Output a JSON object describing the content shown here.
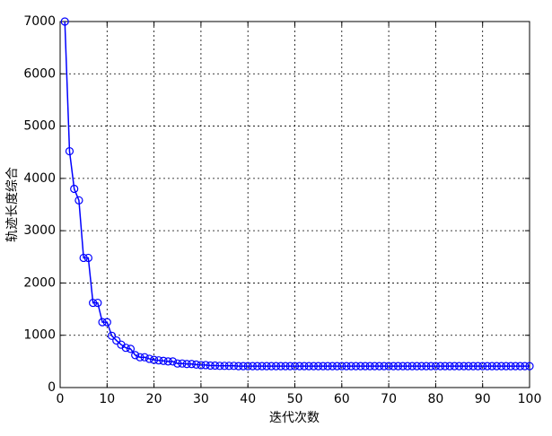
{
  "chart_data": {
    "type": "line",
    "xlabel": "迭代次数",
    "ylabel": "轨迹长度综合",
    "x": [
      1,
      2,
      3,
      4,
      5,
      6,
      7,
      8,
      9,
      10,
      11,
      12,
      13,
      14,
      15,
      16,
      17,
      18,
      19,
      20,
      21,
      22,
      23,
      24,
      25,
      26,
      27,
      28,
      29,
      30,
      31,
      32,
      33,
      34,
      35,
      36,
      37,
      38,
      39,
      40,
      41,
      42,
      43,
      44,
      45,
      46,
      47,
      48,
      49,
      50,
      51,
      52,
      53,
      54,
      55,
      56,
      57,
      58,
      59,
      60,
      61,
      62,
      63,
      64,
      65,
      66,
      67,
      68,
      69,
      70,
      71,
      72,
      73,
      74,
      75,
      76,
      77,
      78,
      79,
      80,
      81,
      82,
      83,
      84,
      85,
      86,
      87,
      88,
      89,
      90,
      91,
      92,
      93,
      94,
      95,
      96,
      97,
      98,
      99,
      100
    ],
    "series": [
      {
        "color": "#0000ff",
        "marker": "circle",
        "values": [
          7000,
          4520,
          3800,
          3580,
          2480,
          2480,
          1620,
          1620,
          1250,
          1250,
          990,
          900,
          820,
          760,
          740,
          620,
          580,
          580,
          550,
          530,
          520,
          510,
          500,
          500,
          460,
          460,
          450,
          450,
          440,
          430,
          430,
          420,
          420,
          415,
          415,
          415,
          415,
          410,
          410,
          410,
          410,
          410,
          410,
          410,
          410,
          410,
          410,
          410,
          410,
          410,
          410,
          410,
          410,
          410,
          410,
          410,
          410,
          410,
          410,
          410,
          410,
          410,
          410,
          410,
          410,
          410,
          410,
          410,
          410,
          410,
          410,
          410,
          410,
          410,
          410,
          410,
          410,
          410,
          410,
          410,
          410,
          410,
          410,
          410,
          410,
          410,
          410,
          410,
          410,
          410,
          410,
          410,
          410,
          410,
          410,
          410,
          410,
          410,
          410,
          410
        ]
      }
    ],
    "xlim": [
      0,
      100
    ],
    "xticks": [
      0,
      10,
      20,
      30,
      40,
      50,
      60,
      70,
      80,
      90,
      100
    ],
    "ylim": [
      0,
      7000
    ],
    "yticks": [
      0,
      1000,
      2000,
      3000,
      4000,
      5000,
      6000,
      7000
    ],
    "grid": true
  }
}
